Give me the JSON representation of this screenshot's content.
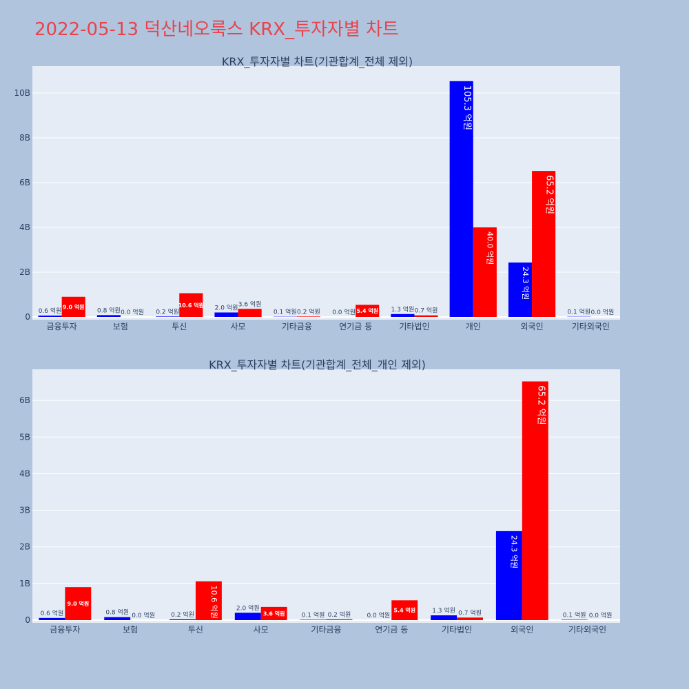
{
  "page_title": "2022-05-13 덕산네오룩스 KRX_투자자별 차트",
  "colors": {
    "background": "#b0c4de",
    "plot_bg": "#e5ecf6",
    "buy": "#0000ff",
    "sell": "#ff0000",
    "title": "#e8434b"
  },
  "chart_data": [
    {
      "type": "bar",
      "title": "KRX_투자자별 차트(기관합계_전체 제외)",
      "categories": [
        "금융투자",
        "보험",
        "투신",
        "사모",
        "기타금융",
        "연기금 등",
        "기타법인",
        "개인",
        "외국인",
        "기타외국인"
      ],
      "series": [
        {
          "values": [
            0.06,
            0.08,
            0.02,
            0.2,
            0.01,
            0.0,
            0.13,
            10.53,
            2.43,
            0.01
          ],
          "labels": [
            "0.6 억원",
            "0.8 억원",
            "0.2 억원",
            "2.0 억원",
            "0.1 억원",
            "0.0 억원",
            "1.3 억원",
            "105.3 억원",
            "24.3 억원",
            "0.1 억원"
          ]
        },
        {
          "values": [
            0.9,
            0.0,
            1.06,
            0.36,
            0.02,
            0.54,
            0.07,
            4.0,
            6.52,
            0.0
          ],
          "labels": [
            "9.0 억원",
            "0.0 억원",
            "10.6 억원",
            "3.6 억원",
            "0.2 억원",
            "5.4 억원",
            "0.7 억원",
            "40.0 억원",
            "65.2 억원",
            "0.0 억원"
          ]
        }
      ],
      "yticks": [
        "0",
        "2B",
        "4B",
        "6B",
        "8B",
        "10B"
      ],
      "ylim": [
        0,
        11.2
      ],
      "ytick_step": 2,
      "grid": true
    },
    {
      "type": "bar",
      "title": "KRX_투자자별 차트(기관합계_전체_개인 제외)",
      "categories": [
        "금융투자",
        "보험",
        "투신",
        "사모",
        "기타금융",
        "연기금 등",
        "기타법인",
        "외국인",
        "기타외국인"
      ],
      "series": [
        {
          "values": [
            0.06,
            0.08,
            0.02,
            0.2,
            0.01,
            0.0,
            0.13,
            2.43,
            0.01
          ],
          "labels": [
            "0.6 억원",
            "0.8 억원",
            "0.2 억원",
            "2.0 억원",
            "0.1 억원",
            "0.0 억원",
            "1.3 억원",
            "24.3 억원",
            "0.1 억원"
          ]
        },
        {
          "values": [
            0.9,
            0.0,
            1.06,
            0.36,
            0.02,
            0.54,
            0.07,
            6.52,
            0.0
          ],
          "labels": [
            "9.0 억원",
            "0.0 억원",
            "10.6 억원",
            "3.6 억원",
            "0.2 억원",
            "5.4 억원",
            "0.7 억원",
            "65.2 억원",
            "0.0 억원"
          ]
        }
      ],
      "yticks": [
        "0",
        "1B",
        "2B",
        "3B",
        "4B",
        "5B",
        "6B"
      ],
      "ylim": [
        0,
        6.85
      ],
      "ytick_step": 1,
      "grid": true
    }
  ]
}
